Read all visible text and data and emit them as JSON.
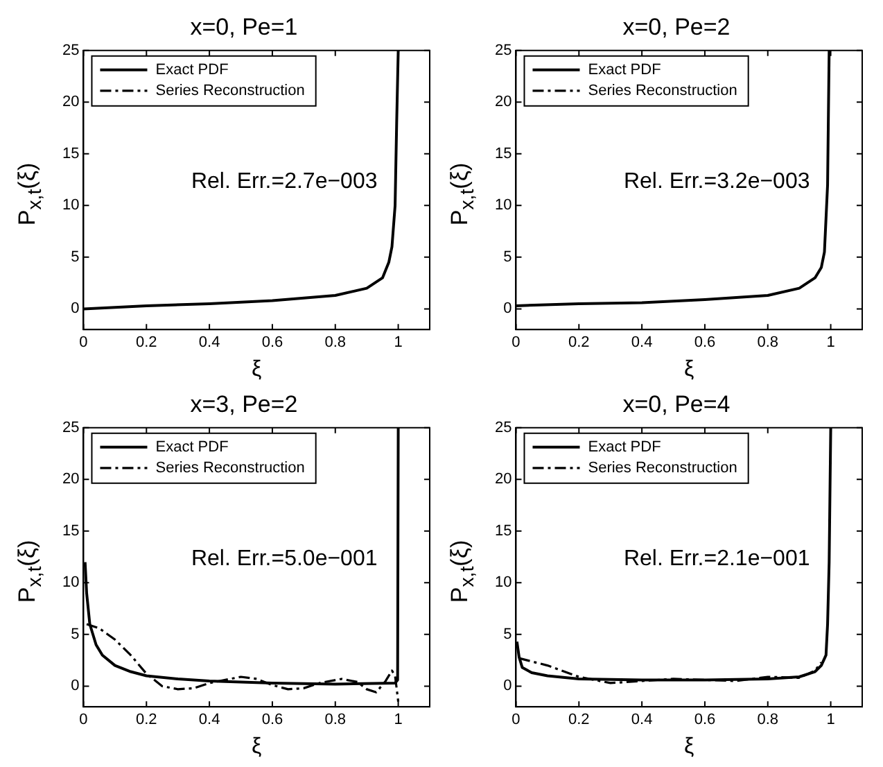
{
  "chart_data": [
    {
      "type": "line",
      "title": "x=0, Pe=1",
      "xlabel": "ξ",
      "ylabel": "P$_{x,t}$(ξ)",
      "xlim": [
        0,
        1.1
      ],
      "ylim": [
        -2,
        25
      ],
      "xticks": [
        0,
        0.2,
        0.4,
        0.6,
        0.8,
        1
      ],
      "yticks": [
        0,
        5,
        10,
        15,
        20,
        25
      ],
      "grid": false,
      "legend": "top left",
      "annotations": [
        "Rel. Err.=2.7e−003"
      ],
      "series": [
        {
          "name": "Exact PDF",
          "color": "#000000",
          "line_style": "solid",
          "x": [
            0,
            0.2,
            0.4,
            0.6,
            0.8,
            0.9,
            0.95,
            0.97,
            0.98,
            0.99,
            0.995,
            1
          ],
          "values": [
            0,
            0.3,
            0.5,
            0.8,
            1.3,
            2,
            3,
            4.5,
            6,
            10,
            18,
            25
          ]
        },
        {
          "name": "Series Reconstruction",
          "color": "#000000",
          "line_style": "dashed"
        }
      ]
    },
    {
      "type": "line",
      "title": "x=0, Pe=2",
      "xlabel": "ξ",
      "ylabel": "P$_{x,t}$(ξ)",
      "xlim": [
        0,
        1.1
      ],
      "ylim": [
        -2,
        25
      ],
      "xticks": [
        0,
        0.2,
        0.4,
        0.6,
        0.8,
        1
      ],
      "yticks": [
        0,
        5,
        10,
        15,
        20,
        25
      ],
      "grid": false,
      "legend": "top left",
      "annotations": [
        "Rel. Err.=3.2e−003"
      ],
      "series": [
        {
          "name": "Exact PDF",
          "color": "#000000",
          "line_style": "solid",
          "x": [
            0,
            0.2,
            0.4,
            0.6,
            0.8,
            0.9,
            0.95,
            0.97,
            0.98,
            0.99,
            0.995
          ],
          "values": [
            0.3,
            0.5,
            0.6,
            0.9,
            1.3,
            2,
            3,
            4,
            5.5,
            12,
            25
          ]
        },
        {
          "name": "Series Reconstruction",
          "color": "#000000",
          "line_style": "dashed"
        }
      ]
    },
    {
      "type": "line",
      "title": "x=3, Pe=2",
      "xlabel": "ξ",
      "ylabel": "P$_{x,t}$(ξ)",
      "xlim": [
        0,
        1.1
      ],
      "ylim": [
        -2,
        25
      ],
      "xticks": [
        0,
        0.2,
        0.4,
        0.6,
        0.8,
        1
      ],
      "yticks": [
        0,
        5,
        10,
        15,
        20,
        25
      ],
      "grid": false,
      "legend": "top left",
      "annotations": [
        "Rel. Err.=5.0e−001"
      ],
      "series": [
        {
          "name": "Exact PDF",
          "color": "#000000",
          "line_style": "solid",
          "x": [
            0.005,
            0.01,
            0.02,
            0.04,
            0.06,
            0.1,
            0.15,
            0.2,
            0.3,
            0.4,
            0.6,
            0.8,
            0.99,
            0.998,
            1
          ],
          "values": [
            12,
            9,
            6,
            4,
            3,
            2,
            1.4,
            1,
            0.7,
            0.5,
            0.3,
            0.2,
            0.3,
            0.6,
            25
          ]
        },
        {
          "name": "Series Reconstruction",
          "color": "#000000",
          "line_style": "dashed",
          "x": [
            0.01,
            0.05,
            0.1,
            0.15,
            0.2,
            0.25,
            0.3,
            0.35,
            0.4,
            0.5,
            0.55,
            0.6,
            0.65,
            0.7,
            0.75,
            0.82,
            0.87,
            0.9,
            0.93,
            0.96,
            0.98,
            0.99,
            1
          ],
          "values": [
            6,
            5.6,
            4.5,
            3,
            1.2,
            0,
            -0.3,
            -0.2,
            0.3,
            0.9,
            0.7,
            0.1,
            -0.3,
            -0.2,
            0.3,
            0.7,
            0.4,
            -0.3,
            -0.6,
            0.5,
            1.5,
            1,
            -1.5
          ]
        }
      ]
    },
    {
      "type": "line",
      "title": "x=0, Pe=4",
      "xlabel": "ξ",
      "ylabel": "P$_{x,t}$(ξ)",
      "xlim": [
        0,
        1.1
      ],
      "ylim": [
        -2,
        25
      ],
      "xticks": [
        0,
        0.2,
        0.4,
        0.6,
        0.8,
        1
      ],
      "yticks": [
        0,
        5,
        10,
        15,
        20,
        25
      ],
      "grid": false,
      "legend": "top left",
      "annotations": [
        "Rel. Err.=2.1e−001"
      ],
      "series": [
        {
          "name": "Exact PDF",
          "color": "#000000",
          "line_style": "solid",
          "x": [
            0.003,
            0.01,
            0.02,
            0.05,
            0.1,
            0.2,
            0.4,
            0.6,
            0.8,
            0.9,
            0.95,
            0.97,
            0.985,
            0.99,
            0.995,
            1
          ],
          "values": [
            4.3,
            2.8,
            1.8,
            1.3,
            1,
            0.7,
            0.6,
            0.6,
            0.7,
            0.9,
            1.4,
            2,
            3,
            6,
            12,
            25
          ]
        },
        {
          "name": "Series Reconstruction",
          "color": "#000000",
          "line_style": "dashed",
          "x": [
            0.01,
            0.1,
            0.2,
            0.3,
            0.4,
            0.5,
            0.6,
            0.7,
            0.8,
            0.9,
            0.95,
            0.97
          ],
          "values": [
            2.7,
            2,
            0.9,
            0.3,
            0.5,
            0.7,
            0.6,
            0.5,
            0.9,
            0.8,
            1.5,
            2.3
          ]
        }
      ]
    }
  ]
}
